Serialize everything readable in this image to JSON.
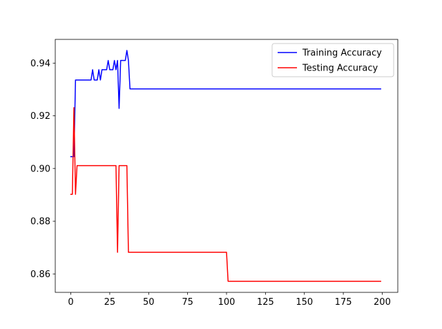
{
  "chart_data": {
    "type": "line",
    "title": "",
    "xlabel": "",
    "ylabel": "",
    "xlim": [
      -10,
      210
    ],
    "ylim": [
      0.853,
      0.949
    ],
    "x_ticks": [
      0,
      25,
      50,
      75,
      100,
      125,
      150,
      175,
      200
    ],
    "y_ticks": [
      0.86,
      0.88,
      0.9,
      0.92,
      0.94
    ],
    "grid": false,
    "legend_position": "top-right",
    "series": [
      {
        "name": "Training Accuracy",
        "color": "#0000ff",
        "points": [
          [
            0,
            0.9045
          ],
          [
            2,
            0.9045
          ],
          [
            3,
            0.9336
          ],
          [
            4,
            0.9336
          ],
          [
            13,
            0.9336
          ],
          [
            14,
            0.9375
          ],
          [
            15,
            0.9336
          ],
          [
            17,
            0.9336
          ],
          [
            18,
            0.9375
          ],
          [
            19,
            0.9336
          ],
          [
            20,
            0.9375
          ],
          [
            23,
            0.9375
          ],
          [
            24,
            0.941
          ],
          [
            25,
            0.9375
          ],
          [
            27,
            0.9375
          ],
          [
            28,
            0.941
          ],
          [
            29,
            0.9375
          ],
          [
            30,
            0.941
          ],
          [
            31,
            0.9228
          ],
          [
            32,
            0.941
          ],
          [
            35,
            0.941
          ],
          [
            36,
            0.9448
          ],
          [
            37,
            0.941
          ],
          [
            38,
            0.9302
          ],
          [
            199,
            0.9302
          ]
        ]
      },
      {
        "name": "Testing Accuracy",
        "color": "#ff0000",
        "points": [
          [
            0,
            0.8902
          ],
          [
            1,
            0.8902
          ],
          [
            2,
            0.9231
          ],
          [
            3,
            0.8902
          ],
          [
            4,
            0.9011
          ],
          [
            29,
            0.9011
          ],
          [
            30,
            0.8682
          ],
          [
            31,
            0.9011
          ],
          [
            36,
            0.9011
          ],
          [
            37,
            0.8682
          ],
          [
            100,
            0.8682
          ],
          [
            101,
            0.8572
          ],
          [
            199,
            0.8572
          ]
        ]
      }
    ]
  }
}
